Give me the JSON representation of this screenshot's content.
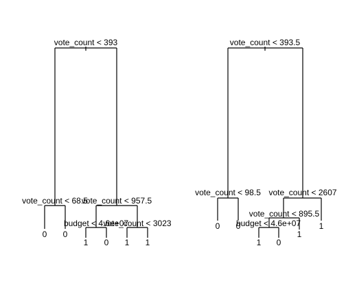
{
  "trees": [
    {
      "root": {
        "label": "vote_count < 393"
      },
      "nodes": [
        {
          "id": "l1",
          "label": "vote_count < 68.5"
        },
        {
          "id": "r1",
          "label": "vote_count < 957.5"
        },
        {
          "id": "r1l",
          "label": "budget < 4.6e+07"
        },
        {
          "id": "r1r",
          "label": "vote_count < 3023"
        }
      ],
      "leaves": [
        "0",
        "0",
        "1",
        "0",
        "1",
        "1"
      ]
    },
    {
      "root": {
        "label": "vote_count < 393.5"
      },
      "nodes": [
        {
          "id": "l1",
          "label": "vote_count < 98.5"
        },
        {
          "id": "r1",
          "label": "vote_count < 2607"
        },
        {
          "id": "r1l",
          "label": "vote_count < 895.5"
        },
        {
          "id": "r1ll",
          "label": "budget < 4.6e+07"
        }
      ],
      "leaves": [
        "0",
        "0",
        "1",
        "0",
        "1",
        "1"
      ]
    }
  ]
}
